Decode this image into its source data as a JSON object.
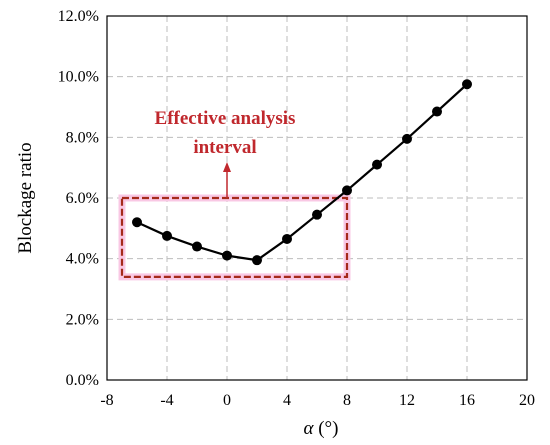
{
  "chart_data": {
    "type": "line",
    "title": "",
    "xlabel": "α (°)",
    "ylabel": "Blockage ratio",
    "xlim": [
      -8,
      20
    ],
    "ylim": [
      0,
      12
    ],
    "x_ticks": [
      -8,
      -4,
      0,
      4,
      8,
      12,
      16,
      20
    ],
    "x_tick_labels": [
      "-8",
      "-4",
      "0",
      "4",
      "8",
      "12",
      "16",
      "20"
    ],
    "y_ticks": [
      0,
      2,
      4,
      6,
      8,
      10,
      12
    ],
    "y_tick_labels": [
      "0.0%",
      "2.0%",
      "4.0%",
      "6.0%",
      "8.0%",
      "10.0%",
      "12.0%"
    ],
    "grid": true,
    "grid_style": "dashed",
    "legend": "none",
    "series": [
      {
        "x": [
          -6,
          -4,
          -2,
          0,
          2,
          4,
          6,
          8,
          10,
          12,
          14,
          16
        ],
        "y": [
          5.2,
          4.75,
          4.4,
          4.1,
          3.95,
          4.65,
          5.45,
          6.25,
          7.1,
          7.95,
          8.85,
          9.75
        ]
      }
    ],
    "annotation": {
      "lines": [
        "Effective analysis",
        "interval"
      ],
      "box_x_range": [
        -7,
        8
      ],
      "box_y_range": [
        3.4,
        6.0
      ],
      "arrow_to_y": 6.0,
      "text_color": "#c0282d",
      "box_color": "#a52a1a",
      "highlight_color": "#f9c8e4"
    },
    "colors": {
      "line": "#000000",
      "marker": "#000000",
      "grid": "#bdbdbd"
    }
  }
}
